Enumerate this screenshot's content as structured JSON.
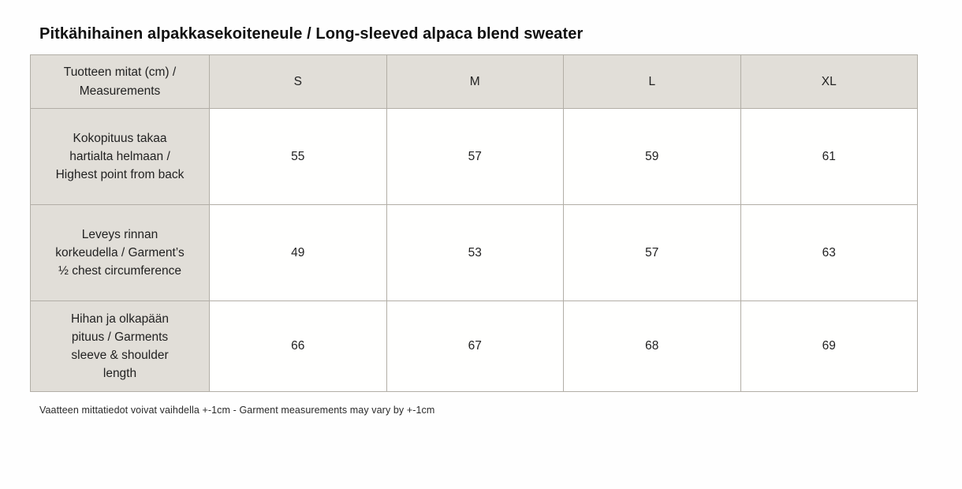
{
  "page": {
    "title": "Pitkähihainen alpakkasekoiteneule / Long-sleeved alpaca blend sweater",
    "footnote": "Vaatteen mittatiedot voivat vaihdella +-1cm - Garment measurements may vary by +-1cm"
  },
  "size_chart": {
    "type": "table",
    "header": {
      "label": "Tuotteen mitat (cm) / Measurements",
      "sizes": [
        "S",
        "M",
        "L",
        "XL"
      ]
    },
    "rows": [
      {
        "label": "Kokopituus takaa hartialta helmaan / Highest point from back",
        "values": [
          "55",
          "57",
          "59",
          "61"
        ]
      },
      {
        "label": "Leveys rinnan korkeudella / Garment’s ½ chest circumference",
        "values": [
          "49",
          "53",
          "57",
          "63"
        ]
      },
      {
        "label": "Hihan ja olkapään pituus / Garments sleeve & shoulder length",
        "values": [
          "66",
          "67",
          "68",
          "69"
        ]
      }
    ]
  },
  "colors": {
    "header_bg": "#e1ded8",
    "cell_bg": "#fffffe",
    "border": "#b2aea6",
    "text": "#1d1d1d",
    "page_bg": "#fefefe"
  }
}
